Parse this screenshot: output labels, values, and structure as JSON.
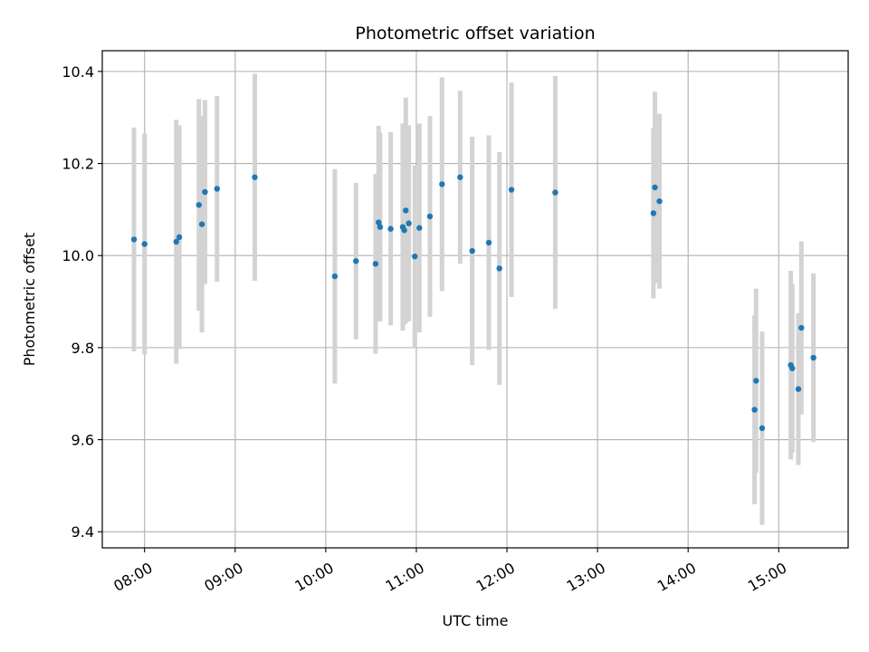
{
  "chart_data": {
    "type": "scatter",
    "title": "Photometric offset variation",
    "xlabel": "UTC time",
    "ylabel": "Photometric offset",
    "x_unit": "time-of-day",
    "xlim": [
      "07:32",
      "15:46"
    ],
    "ylim": [
      9.365,
      10.445
    ],
    "x_ticks": [
      "08:00",
      "09:00",
      "10:00",
      "11:00",
      "12:00",
      "13:00",
      "14:00",
      "15:00"
    ],
    "y_ticks": [
      9.4,
      9.6,
      9.8,
      10.0,
      10.2,
      10.4
    ],
    "grid": true,
    "point_color": "#1f77b4",
    "errorbar_color": "#d3d3d3",
    "points": [
      {
        "x": "07:53",
        "y": 10.035,
        "err": 0.243
      },
      {
        "x": "08:00",
        "y": 10.025,
        "err": 0.24
      },
      {
        "x": "08:21",
        "y": 10.03,
        "err": 0.265
      },
      {
        "x": "08:23",
        "y": 10.04,
        "err": 0.243
      },
      {
        "x": "08:36",
        "y": 10.11,
        "err": 0.23
      },
      {
        "x": "08:38",
        "y": 10.068,
        "err": 0.235
      },
      {
        "x": "08:40",
        "y": 10.138,
        "err": 0.2
      },
      {
        "x": "08:48",
        "y": 10.145,
        "err": 0.202
      },
      {
        "x": "09:13",
        "y": 10.17,
        "err": 0.225
      },
      {
        "x": "10:06",
        "y": 9.955,
        "err": 0.233
      },
      {
        "x": "10:20",
        "y": 9.988,
        "err": 0.17
      },
      {
        "x": "10:33",
        "y": 9.982,
        "err": 0.195
      },
      {
        "x": "10:35",
        "y": 10.072,
        "err": 0.21
      },
      {
        "x": "10:36",
        "y": 10.062,
        "err": 0.205
      },
      {
        "x": "10:43",
        "y": 10.058,
        "err": 0.21
      },
      {
        "x": "10:51",
        "y": 10.062,
        "err": 0.225
      },
      {
        "x": "10:52",
        "y": 10.055,
        "err": 0.205
      },
      {
        "x": "10:53",
        "y": 10.098,
        "err": 0.245
      },
      {
        "x": "10:55",
        "y": 10.07,
        "err": 0.213
      },
      {
        "x": "10:59",
        "y": 9.998,
        "err": 0.198
      },
      {
        "x": "11:02",
        "y": 10.06,
        "err": 0.227
      },
      {
        "x": "11:09",
        "y": 10.085,
        "err": 0.218
      },
      {
        "x": "11:17",
        "y": 10.155,
        "err": 0.232
      },
      {
        "x": "11:29",
        "y": 10.17,
        "err": 0.188
      },
      {
        "x": "11:37",
        "y": 10.01,
        "err": 0.248
      },
      {
        "x": "11:48",
        "y": 10.028,
        "err": 0.233
      },
      {
        "x": "11:55",
        "y": 9.972,
        "err": 0.253
      },
      {
        "x": "12:03",
        "y": 10.143,
        "err": 0.233
      },
      {
        "x": "12:32",
        "y": 10.137,
        "err": 0.253
      },
      {
        "x": "13:37",
        "y": 10.092,
        "err": 0.185
      },
      {
        "x": "13:38",
        "y": 10.148,
        "err": 0.208
      },
      {
        "x": "13:41",
        "y": 10.118,
        "err": 0.19
      },
      {
        "x": "14:44",
        "y": 9.665,
        "err": 0.205
      },
      {
        "x": "14:45",
        "y": 9.728,
        "err": 0.2
      },
      {
        "x": "14:49",
        "y": 9.625,
        "err": 0.21
      },
      {
        "x": "15:08",
        "y": 9.762,
        "err": 0.205
      },
      {
        "x": "15:09",
        "y": 9.755,
        "err": 0.183
      },
      {
        "x": "15:13",
        "y": 9.71,
        "err": 0.165
      },
      {
        "x": "15:15",
        "y": 9.843,
        "err": 0.188
      },
      {
        "x": "15:23",
        "y": 9.778,
        "err": 0.183
      }
    ]
  }
}
